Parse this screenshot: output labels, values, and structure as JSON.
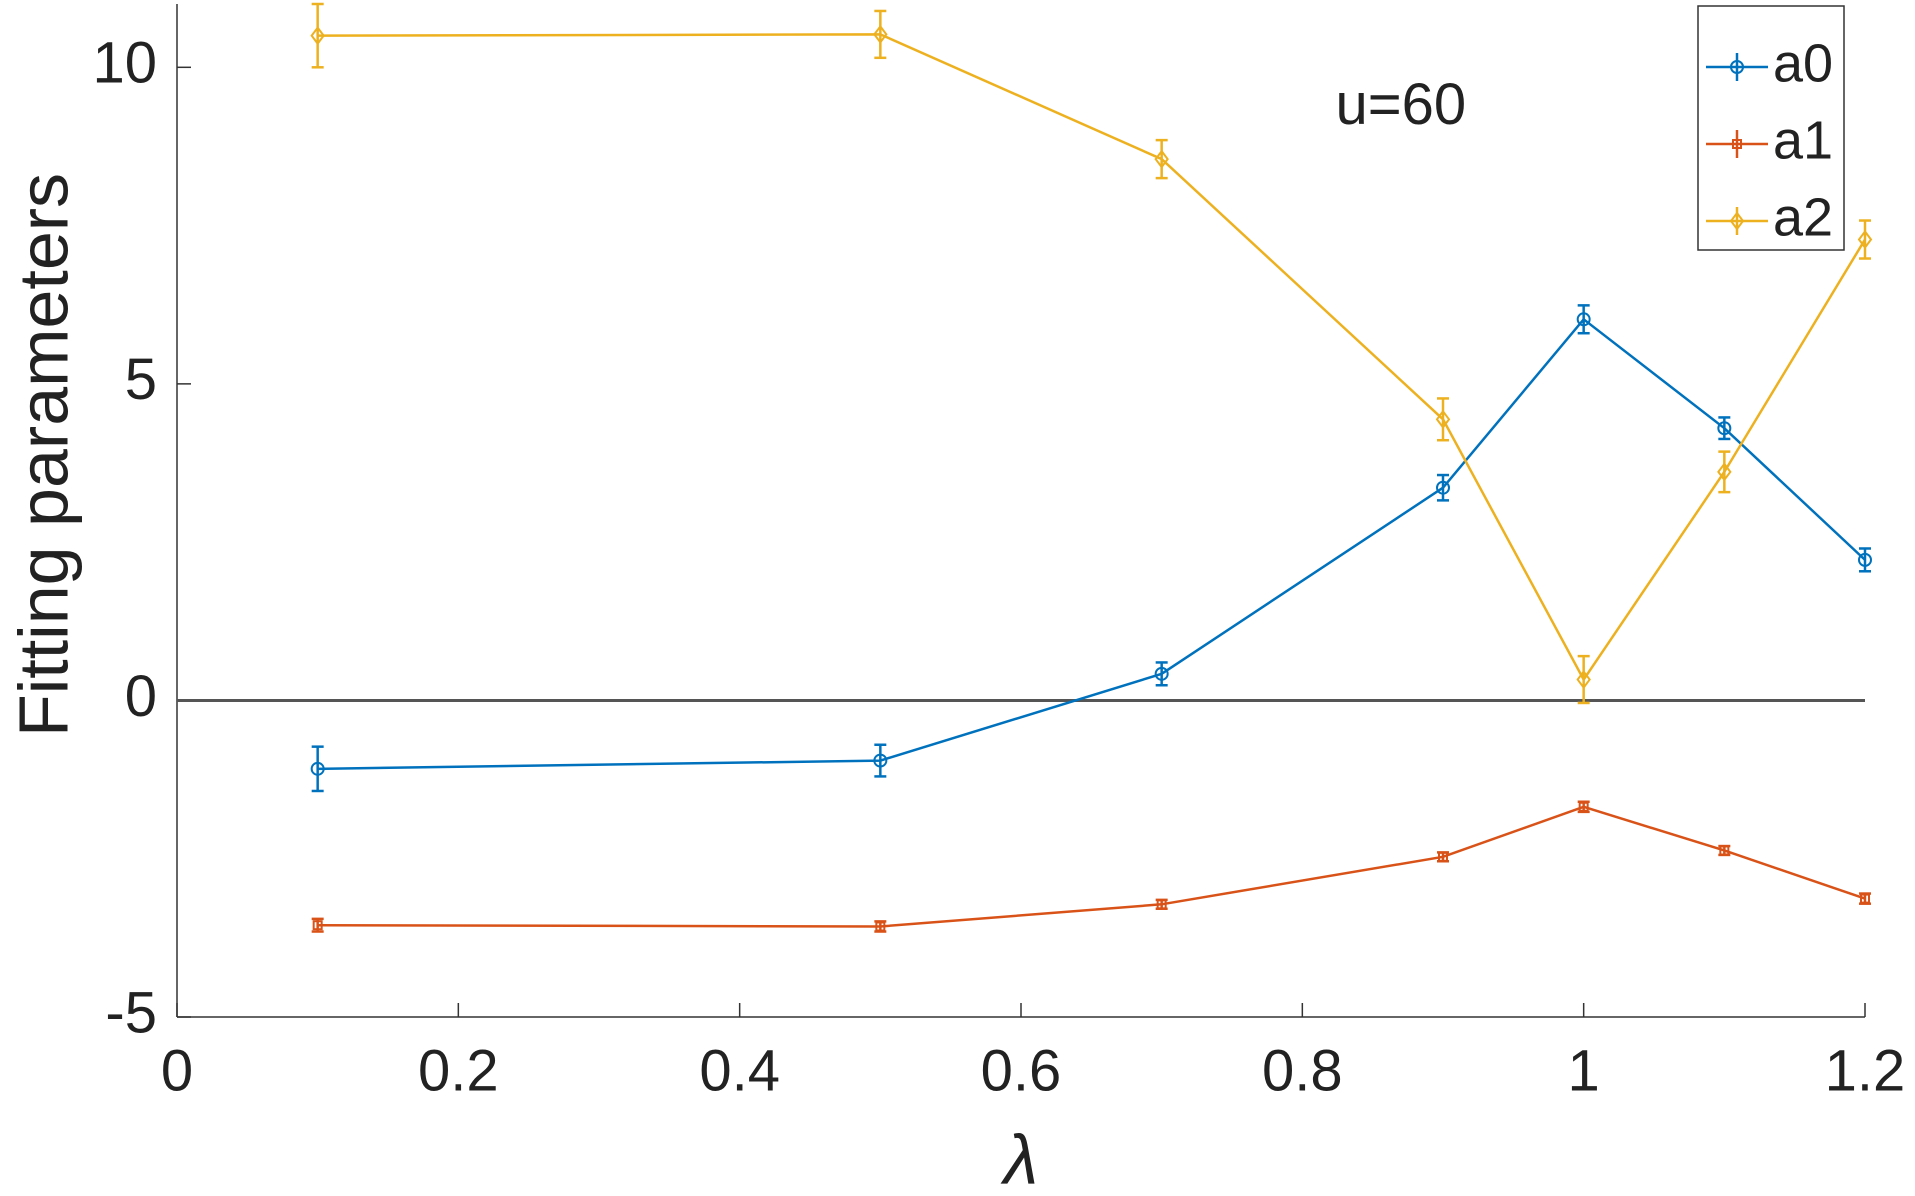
{
  "chart_data": {
    "type": "line",
    "xlabel": "λ",
    "ylabel": "Fitting parameters",
    "annotation": {
      "text": "u=60",
      "x": 0.87,
      "y": 9.35
    },
    "x": [
      0.1,
      0.5,
      0.7,
      0.9,
      1,
      1.1,
      1.2
    ],
    "series": [
      {
        "name": "a0",
        "color": "#0072bd",
        "marker": "circle",
        "values": [
          -1.08,
          -0.95,
          0.42,
          3.36,
          6.02,
          4.3,
          2.22
        ],
        "errors": [
          0.35,
          0.25,
          0.18,
          0.2,
          0.22,
          0.17,
          0.18
        ]
      },
      {
        "name": "a1",
        "color": "#d95319",
        "marker": "square",
        "values": [
          -3.55,
          -3.57,
          -3.22,
          -2.47,
          -1.68,
          -2.37,
          -3.13
        ],
        "errors": [
          0.1,
          0.08,
          0.07,
          0.07,
          0.08,
          0.07,
          0.08
        ]
      },
      {
        "name": "a2",
        "color": "#edb120",
        "marker": "diamond",
        "values": [
          10.5,
          10.52,
          8.55,
          4.44,
          0.33,
          3.61,
          7.28
        ],
        "errors": [
          0.5,
          0.37,
          0.3,
          0.33,
          0.37,
          0.32,
          0.3
        ]
      }
    ],
    "xlim": [
      0,
      1.2
    ],
    "ylim": [
      -5,
      11
    ],
    "xticks": [
      0,
      0.2,
      0.4,
      0.6,
      0.8,
      1,
      1.2
    ],
    "yticks": [
      -5,
      0,
      5,
      10
    ],
    "reference_line": 0,
    "legend": "top-right"
  }
}
